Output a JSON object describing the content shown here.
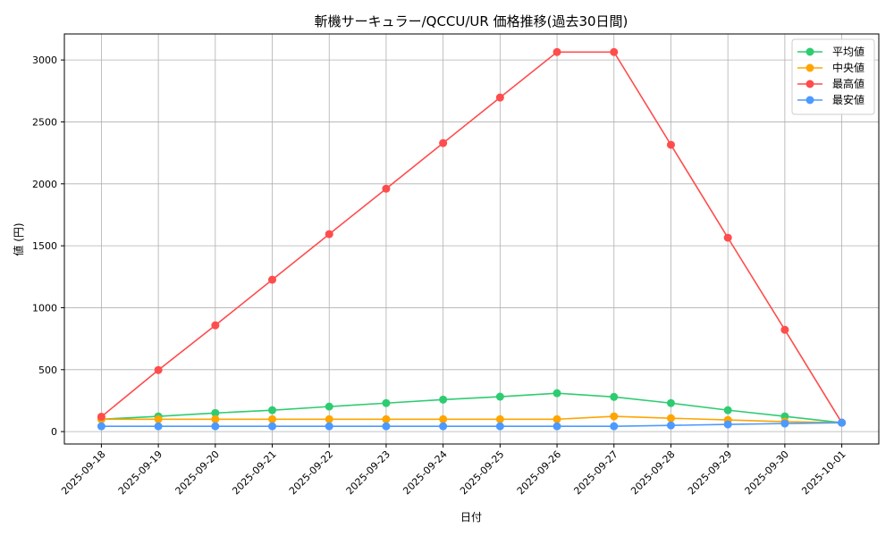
{
  "chart_data": {
    "type": "line",
    "title": "斬機サーキュラー/QCCU/UR 価格推移(過去30日間)",
    "xlabel": "日付",
    "ylabel": "値 (円)",
    "categories": [
      "2025-09-18",
      "2025-09-19",
      "2025-09-20",
      "2025-09-21",
      "2025-09-22",
      "2025-09-23",
      "2025-09-24",
      "2025-09-25",
      "2025-09-26",
      "2025-09-27",
      "2025-09-28",
      "2025-09-29",
      "2025-09-30",
      "2025-10-01"
    ],
    "yticks": [
      0,
      500,
      1000,
      1500,
      2000,
      2500,
      3000
    ],
    "ylim": [
      -100,
      3210
    ],
    "grid": true,
    "legend_position": "top-right",
    "series": [
      {
        "name": "平均値",
        "color": "#2ecc71",
        "values": [
          100,
          123,
          150,
          173,
          202,
          230,
          258,
          282,
          310,
          280,
          230,
          173,
          123,
          72
        ]
      },
      {
        "name": "中央値",
        "color": "#ffa500",
        "values": [
          100,
          100,
          100,
          100,
          100,
          100,
          100,
          100,
          100,
          123,
          108,
          94,
          80,
          72
        ]
      },
      {
        "name": "最高値",
        "color": "#ff4c4c",
        "values": [
          120,
          497,
          858,
          1226,
          1594,
          1961,
          2329,
          2697,
          3064,
          3064,
          2315,
          1565,
          822,
          72
        ]
      },
      {
        "name": "最安値",
        "color": "#4c9aff",
        "values": [
          43,
          43,
          43,
          43,
          43,
          43,
          43,
          43,
          43,
          43,
          50,
          58,
          65,
          72
        ]
      }
    ]
  }
}
